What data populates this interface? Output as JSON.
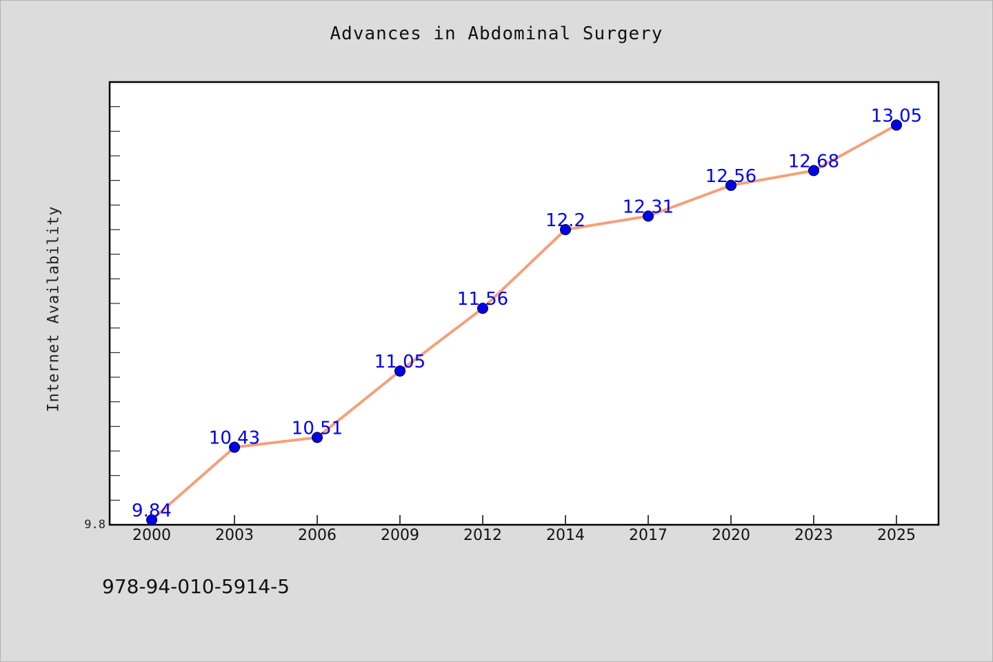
{
  "chart_data": {
    "type": "line",
    "title": "Advances in Abdominal Surgery",
    "ylabel": "Internet Availability",
    "xlabel": "",
    "categories": [
      "2000",
      "2003",
      "2006",
      "2009",
      "2012",
      "2014",
      "2017",
      "2020",
      "2023",
      "2025"
    ],
    "series": [
      {
        "values": [
          9.84,
          10.43,
          10.51,
          11.05,
          11.56,
          12.2,
          12.31,
          12.56,
          12.68,
          13.05
        ],
        "labels": [
          "9.84",
          "10.43",
          "10.51",
          "11.05",
          "11.56",
          "12.2",
          "12.31",
          "12.56",
          "12.68",
          "13.05"
        ],
        "line_color": "#f4a07a",
        "marker_color": "#0000ee"
      }
    ],
    "ylim": [
      9.8,
      13.4
    ],
    "y_tick_labels": [
      "9.8"
    ],
    "grid": false,
    "label_color": "#0000ee"
  },
  "footer": {
    "isbn": "978-94-010-5914-5"
  }
}
